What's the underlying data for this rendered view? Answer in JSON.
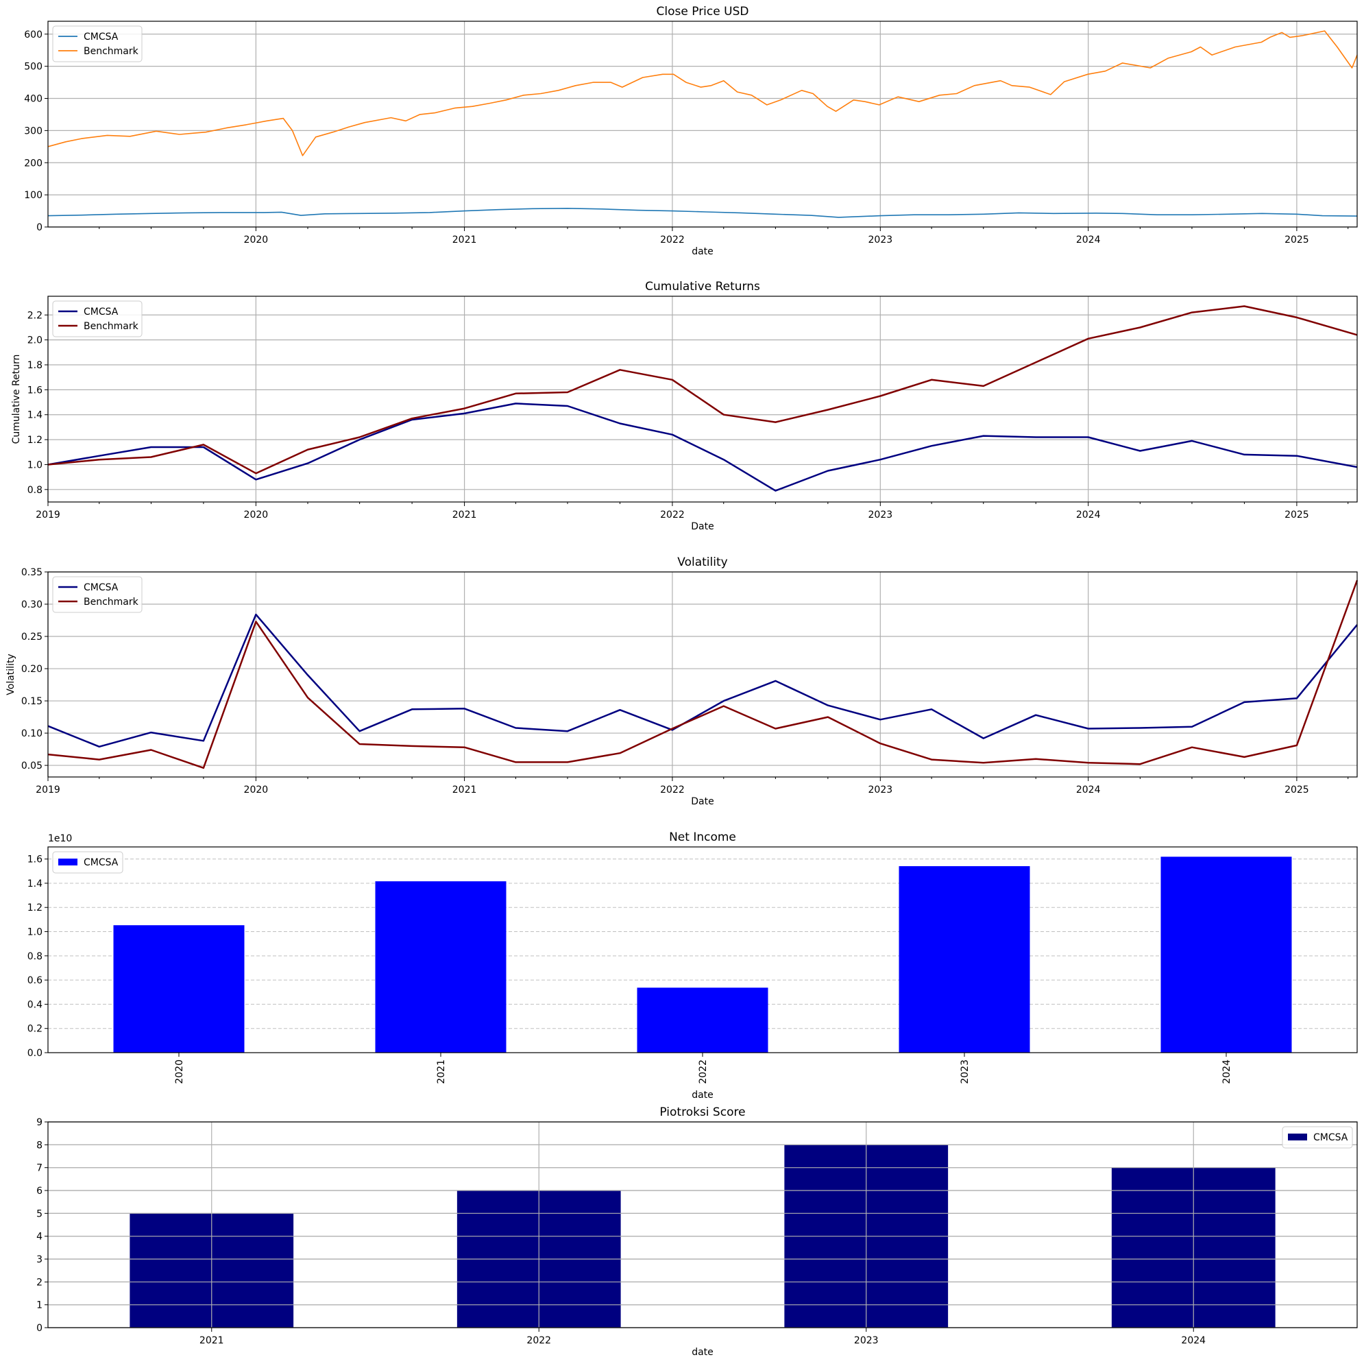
{
  "figure": {
    "background": "#ffffff"
  },
  "chart_data": [
    {
      "type": "line",
      "title": "Close Price USD",
      "xlabel": "date",
      "ylabel": "",
      "x_axis": "date",
      "xlim": [
        "2019-01-01",
        "2025-04-17"
      ],
      "ylim": [
        0,
        640
      ],
      "xticks": [
        {
          "value": "2020-01-01",
          "label": "2020"
        },
        {
          "value": "2021-01-01",
          "label": "2021"
        },
        {
          "value": "2022-01-01",
          "label": "2022"
        },
        {
          "value": "2023-01-01",
          "label": "2023"
        },
        {
          "value": "2024-01-01",
          "label": "2024"
        },
        {
          "value": "2025-01-01",
          "label": "2025"
        }
      ],
      "yticks": [
        0,
        100,
        200,
        300,
        400,
        500,
        600
      ],
      "ytick_labels": [
        "0",
        "100",
        "200",
        "300",
        "400",
        "500",
        "600"
      ],
      "grid": true,
      "legend": "upper-left",
      "series": [
        {
          "name": "CMCSA",
          "color": "#1f77b4",
          "x": [
            "2019-01-01",
            "2019-03-01",
            "2019-05-01",
            "2019-07-01",
            "2019-09-01",
            "2019-11-01",
            "2020-01-15",
            "2020-02-15",
            "2020-03-20",
            "2020-05-01",
            "2020-07-01",
            "2020-09-01",
            "2020-11-01",
            "2021-01-01",
            "2021-03-01",
            "2021-05-01",
            "2021-07-01",
            "2021-09-01",
            "2021-11-01",
            "2022-01-01",
            "2022-03-01",
            "2022-05-01",
            "2022-07-01",
            "2022-09-01",
            "2022-10-20",
            "2023-01-01",
            "2023-03-01",
            "2023-05-01",
            "2023-07-01",
            "2023-09-01",
            "2023-11-01",
            "2024-01-15",
            "2024-03-01",
            "2024-05-01",
            "2024-07-01",
            "2024-09-01",
            "2024-11-01",
            "2025-01-01",
            "2025-02-15",
            "2025-04-17"
          ],
          "y": [
            35,
            37,
            40,
            42,
            44,
            45,
            45,
            46,
            36,
            41,
            42,
            43,
            45,
            50,
            54,
            57,
            58,
            56,
            52,
            50,
            47,
            44,
            40,
            36,
            30,
            35,
            38,
            38,
            40,
            44,
            42,
            43,
            42,
            38,
            38,
            40,
            42,
            40,
            35,
            34
          ]
        },
        {
          "name": "Benchmark",
          "color": "#ff7f0e",
          "x": [
            "2019-01-01",
            "2019-02-01",
            "2019-03-01",
            "2019-04-15",
            "2019-05-25",
            "2019-07-10",
            "2019-08-20",
            "2019-09-15",
            "2019-10-05",
            "2019-11-10",
            "2019-12-15",
            "2020-01-20",
            "2020-02-18",
            "2020-03-05",
            "2020-03-23",
            "2020-04-15",
            "2020-05-15",
            "2020-06-10",
            "2020-07-10",
            "2020-08-25",
            "2020-09-20",
            "2020-10-15",
            "2020-11-10",
            "2020-12-15",
            "2021-01-15",
            "2021-02-15",
            "2021-03-15",
            "2021-04-15",
            "2021-05-15",
            "2021-06-15",
            "2021-07-15",
            "2021-08-15",
            "2021-09-15",
            "2021-10-05",
            "2021-11-10",
            "2021-12-15",
            "2022-01-03",
            "2022-01-25",
            "2022-02-20",
            "2022-03-10",
            "2022-04-01",
            "2022-04-25",
            "2022-05-20",
            "2022-06-16",
            "2022-07-10",
            "2022-08-16",
            "2022-09-05",
            "2022-09-30",
            "2022-10-15",
            "2022-11-15",
            "2022-12-05",
            "2022-12-30",
            "2023-02-01",
            "2023-03-10",
            "2023-04-15",
            "2023-05-15",
            "2023-06-15",
            "2023-07-31",
            "2023-08-20",
            "2023-09-20",
            "2023-10-27",
            "2023-11-20",
            "2023-12-31",
            "2024-01-31",
            "2024-03-01",
            "2024-04-19",
            "2024-05-20",
            "2024-06-30",
            "2024-07-16",
            "2024-08-05",
            "2024-09-15",
            "2024-10-31",
            "2024-11-15",
            "2024-12-06",
            "2024-12-20",
            "2025-01-10",
            "2025-02-19",
            "2025-03-13",
            "2025-04-08",
            "2025-04-17"
          ],
          "y": [
            250,
            265,
            275,
            285,
            282,
            298,
            288,
            292,
            295,
            308,
            318,
            330,
            338,
            300,
            222,
            280,
            295,
            310,
            325,
            340,
            330,
            350,
            355,
            370,
            375,
            385,
            395,
            410,
            415,
            425,
            440,
            450,
            450,
            435,
            465,
            475,
            475,
            450,
            435,
            440,
            455,
            420,
            410,
            380,
            395,
            425,
            415,
            375,
            360,
            395,
            390,
            380,
            405,
            390,
            410,
            415,
            440,
            455,
            440,
            435,
            412,
            452,
            475,
            485,
            510,
            495,
            525,
            545,
            560,
            535,
            560,
            575,
            590,
            605,
            590,
            595,
            610,
            560,
            495,
            535
          ]
        }
      ]
    },
    {
      "type": "line",
      "title": "Cumulative Returns",
      "xlabel": "Date",
      "ylabel": "Cumulative Return",
      "x_axis": "date",
      "xlim": [
        "2019-01-01",
        "2025-04-17"
      ],
      "ylim": [
        0.7,
        2.35
      ],
      "xticks": [
        {
          "value": "2019-01-01",
          "label": "2019"
        },
        {
          "value": "2020-01-01",
          "label": "2020"
        },
        {
          "value": "2021-01-01",
          "label": "2021"
        },
        {
          "value": "2022-01-01",
          "label": "2022"
        },
        {
          "value": "2023-01-01",
          "label": "2023"
        },
        {
          "value": "2024-01-01",
          "label": "2024"
        },
        {
          "value": "2025-01-01",
          "label": "2025"
        }
      ],
      "yticks": [
        0.8,
        1.0,
        1.2,
        1.4,
        1.6,
        1.8,
        2.0,
        2.2
      ],
      "ytick_labels": [
        "0.8",
        "1.0",
        "1.2",
        "1.4",
        "1.6",
        "1.8",
        "2.0",
        "2.2"
      ],
      "grid": true,
      "legend": "upper-left",
      "series": [
        {
          "name": "CMCSA",
          "color": "#000080",
          "x": [
            "2019-01-01",
            "2019-04-01",
            "2019-07-01",
            "2019-10-01",
            "2020-01-01",
            "2020-04-01",
            "2020-07-01",
            "2020-10-01",
            "2021-01-01",
            "2021-04-01",
            "2021-07-01",
            "2021-10-01",
            "2022-01-01",
            "2022-04-01",
            "2022-07-01",
            "2022-10-01",
            "2023-01-01",
            "2023-04-01",
            "2023-07-01",
            "2023-10-01",
            "2024-01-01",
            "2024-04-01",
            "2024-07-01",
            "2024-10-01",
            "2025-01-01",
            "2025-04-17"
          ],
          "y": [
            1.0,
            1.07,
            1.14,
            1.14,
            0.88,
            1.01,
            1.2,
            1.36,
            1.41,
            1.49,
            1.47,
            1.33,
            1.24,
            1.04,
            0.79,
            0.95,
            1.04,
            1.15,
            1.23,
            1.22,
            1.22,
            1.11,
            1.19,
            1.08,
            1.07,
            0.98
          ]
        },
        {
          "name": "Benchmark",
          "color": "#800000",
          "x": [
            "2019-01-01",
            "2019-04-01",
            "2019-07-01",
            "2019-10-01",
            "2020-01-01",
            "2020-04-01",
            "2020-07-01",
            "2020-10-01",
            "2021-01-01",
            "2021-04-01",
            "2021-07-01",
            "2021-10-01",
            "2022-01-01",
            "2022-04-01",
            "2022-07-01",
            "2022-10-01",
            "2023-01-01",
            "2023-04-01",
            "2023-07-01",
            "2023-10-01",
            "2024-01-01",
            "2024-04-01",
            "2024-07-01",
            "2024-10-01",
            "2025-01-01",
            "2025-04-17"
          ],
          "y": [
            1.0,
            1.04,
            1.06,
            1.16,
            0.93,
            1.12,
            1.22,
            1.37,
            1.45,
            1.57,
            1.58,
            1.76,
            1.68,
            1.4,
            1.34,
            1.44,
            1.55,
            1.68,
            1.63,
            1.82,
            2.01,
            2.1,
            2.22,
            2.27,
            2.18,
            2.04
          ]
        }
      ]
    },
    {
      "type": "line",
      "title": "Volatility",
      "xlabel": "Date",
      "ylabel": "Volatility",
      "x_axis": "date",
      "xlim": [
        "2019-01-01",
        "2025-04-17"
      ],
      "ylim": [
        0.032,
        0.35
      ],
      "xticks": [
        {
          "value": "2019-01-01",
          "label": "2019"
        },
        {
          "value": "2020-01-01",
          "label": "2020"
        },
        {
          "value": "2021-01-01",
          "label": "2021"
        },
        {
          "value": "2022-01-01",
          "label": "2022"
        },
        {
          "value": "2023-01-01",
          "label": "2023"
        },
        {
          "value": "2024-01-01",
          "label": "2024"
        },
        {
          "value": "2025-01-01",
          "label": "2025"
        }
      ],
      "yticks": [
        0.05,
        0.1,
        0.15,
        0.2,
        0.25,
        0.3,
        0.35
      ],
      "ytick_labels": [
        "0.05",
        "0.10",
        "0.15",
        "0.20",
        "0.25",
        "0.30",
        "0.35"
      ],
      "grid": true,
      "legend": "upper-left",
      "series": [
        {
          "name": "CMCSA",
          "color": "#000080",
          "x": [
            "2019-01-01",
            "2019-04-01",
            "2019-07-01",
            "2019-10-01",
            "2020-01-01",
            "2020-04-01",
            "2020-07-01",
            "2020-10-01",
            "2021-01-01",
            "2021-04-01",
            "2021-07-01",
            "2021-10-01",
            "2022-01-01",
            "2022-04-01",
            "2022-07-01",
            "2022-10-01",
            "2023-01-01",
            "2023-04-01",
            "2023-07-01",
            "2023-10-01",
            "2024-01-01",
            "2024-04-01",
            "2024-07-01",
            "2024-10-01",
            "2025-01-01",
            "2025-04-17"
          ],
          "y": [
            0.111,
            0.079,
            0.101,
            0.088,
            0.284,
            0.19,
            0.103,
            0.137,
            0.138,
            0.108,
            0.103,
            0.136,
            0.105,
            0.15,
            0.181,
            0.143,
            0.121,
            0.137,
            0.092,
            0.128,
            0.107,
            0.108,
            0.11,
            0.148,
            0.154,
            0.268
          ]
        },
        {
          "name": "Benchmark",
          "color": "#800000",
          "x": [
            "2019-01-01",
            "2019-04-01",
            "2019-07-01",
            "2019-10-01",
            "2020-01-01",
            "2020-04-01",
            "2020-07-01",
            "2020-10-01",
            "2021-01-01",
            "2021-04-01",
            "2021-07-01",
            "2021-10-01",
            "2022-01-01",
            "2022-04-01",
            "2022-07-01",
            "2022-10-01",
            "2023-01-01",
            "2023-04-01",
            "2023-07-01",
            "2023-10-01",
            "2024-01-01",
            "2024-04-01",
            "2024-07-01",
            "2024-10-01",
            "2025-01-01",
            "2025-04-17"
          ],
          "y": [
            0.067,
            0.059,
            0.074,
            0.046,
            0.273,
            0.155,
            0.083,
            0.08,
            0.078,
            0.055,
            0.055,
            0.069,
            0.107,
            0.142,
            0.107,
            0.125,
            0.084,
            0.059,
            0.054,
            0.06,
            0.054,
            0.052,
            0.078,
            0.063,
            0.081,
            0.337
          ]
        }
      ]
    },
    {
      "type": "bar",
      "title": "Net Income",
      "xlabel": "date",
      "ylabel": "",
      "offset_label": "1e10",
      "categories": [
        "2020",
        "2021",
        "2022",
        "2023",
        "2024"
      ],
      "category_label_rotation": "vertical",
      "ylim": [
        0,
        1.7
      ],
      "yticks": [
        0.0,
        0.2,
        0.4,
        0.6,
        0.8,
        1.0,
        1.2,
        1.4,
        1.6
      ],
      "ytick_labels": [
        "0.0",
        "0.2",
        "0.4",
        "0.6",
        "0.8",
        "1.0",
        "1.2",
        "1.4",
        "1.6"
      ],
      "grid": "y-dashed",
      "legend": "upper-left",
      "series": [
        {
          "name": "CMCSA",
          "color": "#0000ff",
          "values": [
            1.053,
            1.416,
            0.537,
            1.541,
            1.619
          ]
        }
      ]
    },
    {
      "type": "bar",
      "title": "Piotroksi Score",
      "xlabel": "date",
      "ylabel": "",
      "categories": [
        "2021",
        "2022",
        "2023",
        "2024"
      ],
      "category_label_rotation": "horizontal",
      "ylim": [
        0,
        9
      ],
      "yticks": [
        0,
        1,
        2,
        3,
        4,
        5,
        6,
        7,
        8,
        9
      ],
      "ytick_labels": [
        "0",
        "1",
        "2",
        "3",
        "4",
        "5",
        "6",
        "7",
        "8",
        "9"
      ],
      "grid": true,
      "legend": "upper-right",
      "series": [
        {
          "name": "CMCSA",
          "color": "#000080",
          "values": [
            5,
            6,
            8,
            7
          ]
        }
      ]
    }
  ]
}
